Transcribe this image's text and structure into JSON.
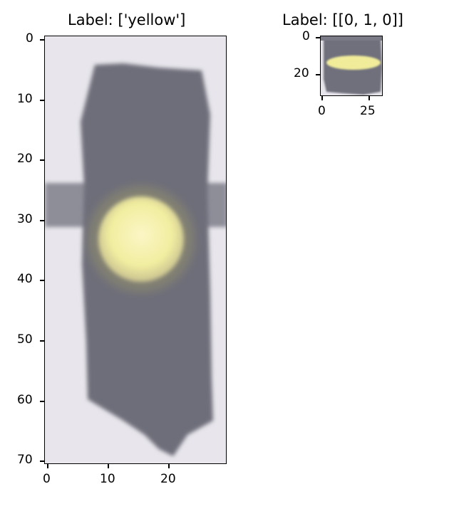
{
  "figure": {
    "panels": [
      {
        "title": "Label: ['yellow']",
        "image_kind": "traffic-light-photo",
        "xticks": [
          "0",
          "10",
          "20"
        ],
        "yticks": [
          "0",
          "10",
          "20",
          "30",
          "40",
          "50",
          "60",
          "70"
        ],
        "colors": {
          "background": "#e8e6ec",
          "housing": "#6e6e7a",
          "lamp": "#f2eea0",
          "lamp_glow": "#fbf6c6"
        }
      },
      {
        "title": "Label: [[0, 1, 0]]",
        "image_kind": "traffic-light-crop",
        "xticks": [
          "0",
          "25"
        ],
        "yticks": [
          "0",
          "20"
        ],
        "colors": {
          "background": "#e8e6ec",
          "housing": "#6f6f7c",
          "lamp": "#f0ec9a"
        }
      }
    ]
  }
}
